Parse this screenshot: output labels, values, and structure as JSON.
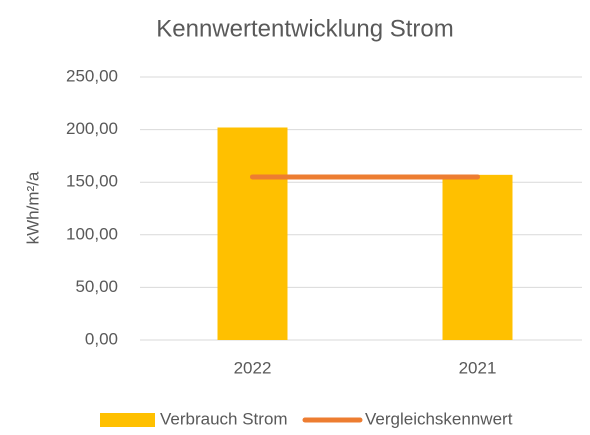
{
  "chart_data": {
    "type": "bar",
    "title": "Kennwertentwicklung Strom",
    "y_label": "kWh/m²/a",
    "categories": [
      "2022",
      "2021"
    ],
    "series": [
      {
        "name": "Verbrauch Strom",
        "type": "bar",
        "color": "#FFC000",
        "values": [
          202,
          157
        ]
      },
      {
        "name": "Vergleichskennwert",
        "type": "line",
        "color": "#ED7D31",
        "values": [
          155,
          155
        ]
      }
    ],
    "ylim": [
      0,
      250
    ],
    "yticks": [
      {
        "value": 0,
        "label": "0,00"
      },
      {
        "value": 50,
        "label": "50,00"
      },
      {
        "value": 100,
        "label": "100,00"
      },
      {
        "value": 150,
        "label": "150,00"
      },
      {
        "value": 200,
        "label": "200,00"
      },
      {
        "value": 250,
        "label": "250,00"
      }
    ],
    "grid": true,
    "legend": "bottom"
  }
}
